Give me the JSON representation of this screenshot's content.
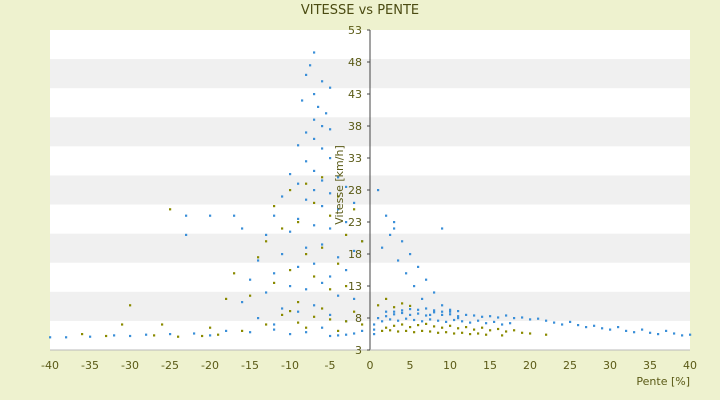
{
  "chart_data": {
    "type": "scatter",
    "title": "VITESSE vs PENTE",
    "xlabel": "Pente [%]",
    "ylabel": "Vitesse [km/h]",
    "xlim": [
      -40,
      40
    ],
    "ylim": [
      3,
      53
    ],
    "x_ticks": [
      "-40",
      "-35",
      "-30",
      "-25",
      "-20",
      "-15",
      "-10",
      "-5",
      "0",
      "5",
      "10",
      "15",
      "20",
      "25",
      "30",
      "35",
      "40"
    ],
    "y_ticks": [
      "53",
      "48",
      "43",
      "38",
      "33",
      "28",
      "23",
      "18",
      "13",
      "8",
      "3"
    ],
    "grid": "horizontal bands",
    "legend": "none",
    "colors": {
      "series_a": "#3a8fd8",
      "series_b": "#8a8a00",
      "background": "#eef2cf",
      "plot": "#ffffff",
      "band": "#f0f0f0"
    },
    "series": [
      {
        "color": "#3a8fd8",
        "points": [
          [
            -7,
            49.5
          ],
          [
            -7.5,
            47.5
          ],
          [
            -8,
            46
          ],
          [
            -6,
            45
          ],
          [
            -5,
            44
          ],
          [
            -7,
            43
          ],
          [
            -6.5,
            41
          ],
          [
            -8.5,
            42
          ],
          [
            -5.5,
            40
          ],
          [
            -7,
            39
          ],
          [
            -6,
            38
          ],
          [
            -5,
            37.5
          ],
          [
            -8,
            37
          ],
          [
            -7,
            36
          ],
          [
            -9,
            35
          ],
          [
            -6,
            34.5
          ],
          [
            -5,
            33
          ],
          [
            -8,
            32.5
          ],
          [
            -7,
            31
          ],
          [
            -10,
            30.5
          ],
          [
            -4,
            30
          ],
          [
            -6,
            29.5
          ],
          [
            -9,
            29
          ],
          [
            -3,
            28.5
          ],
          [
            -7,
            28
          ],
          [
            -5,
            27.5
          ],
          [
            -11,
            27
          ],
          [
            -8,
            26.5
          ],
          [
            -2,
            26
          ],
          [
            -6,
            25.5
          ],
          [
            -4,
            25
          ],
          [
            -12,
            24
          ],
          [
            -9,
            23.5
          ],
          [
            -3,
            23
          ],
          [
            -7,
            22.5
          ],
          [
            -5,
            22
          ],
          [
            -10,
            21.5
          ],
          [
            -13,
            21
          ],
          [
            -1,
            20
          ],
          [
            -6,
            19.5
          ],
          [
            -8,
            19
          ],
          [
            -2,
            18.5
          ],
          [
            -11,
            18
          ],
          [
            -4,
            17.5
          ],
          [
            -14,
            17
          ],
          [
            -7,
            16.5
          ],
          [
            -9,
            16
          ],
          [
            -3,
            15.5
          ],
          [
            -12,
            15
          ],
          [
            -5,
            14.5
          ],
          [
            -15,
            14
          ],
          [
            -6,
            13.5
          ],
          [
            -10,
            13
          ],
          [
            -8,
            12.5
          ],
          [
            -13,
            12
          ],
          [
            -4,
            11.5
          ],
          [
            -2,
            11
          ],
          [
            -16,
            10.5
          ],
          [
            -7,
            10
          ],
          [
            -11,
            9.5
          ],
          [
            -9,
            9
          ],
          [
            -5,
            8.5
          ],
          [
            -14,
            8
          ],
          [
            -3,
            7.5
          ],
          [
            -12,
            7
          ],
          [
            -6,
            6.5
          ],
          [
            -18,
            6
          ],
          [
            -8,
            5.8
          ],
          [
            -10,
            5.5
          ],
          [
            -20,
            5.3
          ],
          [
            -23,
            24
          ],
          [
            -23,
            21
          ],
          [
            -20,
            24
          ],
          [
            -17,
            24
          ],
          [
            -16,
            22
          ],
          [
            -25,
            5.5
          ],
          [
            -30,
            5.2
          ],
          [
            -35,
            5.1
          ],
          [
            -38,
            5
          ],
          [
            -40,
            5
          ],
          [
            1,
            28
          ],
          [
            2,
            24
          ],
          [
            3,
            23
          ],
          [
            2.5,
            21
          ],
          [
            1.5,
            19
          ],
          [
            4,
            20
          ],
          [
            5,
            18
          ],
          [
            3.5,
            17
          ],
          [
            6,
            16
          ],
          [
            4.5,
            15
          ],
          [
            7,
            14
          ],
          [
            5.5,
            13
          ],
          [
            8,
            12
          ],
          [
            6.5,
            11
          ],
          [
            9,
            10
          ],
          [
            10,
            9
          ],
          [
            7.5,
            8.5
          ],
          [
            11,
            8
          ],
          [
            3,
            22
          ],
          [
            9,
            22
          ],
          [
            2,
            9
          ],
          [
            3,
            9
          ],
          [
            4,
            9.2
          ],
          [
            5,
            9.4
          ],
          [
            6,
            9.3
          ],
          [
            7,
            9.5
          ],
          [
            8,
            9.2
          ],
          [
            9,
            9
          ],
          [
            10,
            9.3
          ],
          [
            11,
            9.1
          ],
          [
            1,
            8
          ],
          [
            2,
            8.3
          ],
          [
            3,
            8.6
          ],
          [
            4,
            8.8
          ],
          [
            5,
            8.5
          ],
          [
            6,
            8.7
          ],
          [
            7,
            8.4
          ],
          [
            8,
            8.9
          ],
          [
            9,
            8.5
          ],
          [
            10,
            8.6
          ],
          [
            11,
            8.3
          ],
          [
            12,
            8.5
          ],
          [
            13,
            8.4
          ],
          [
            14,
            8.2
          ],
          [
            15,
            8.3
          ],
          [
            16,
            8.1
          ],
          [
            17,
            8.4
          ],
          [
            18,
            8
          ],
          [
            19,
            8.1
          ],
          [
            20,
            7.8
          ],
          [
            21,
            7.9
          ],
          [
            22,
            7.6
          ],
          [
            23,
            7.3
          ],
          [
            24,
            7
          ],
          [
            25,
            7.4
          ],
          [
            26,
            6.9
          ],
          [
            27,
            6.6
          ],
          [
            28,
            6.8
          ],
          [
            29,
            6.4
          ],
          [
            30,
            6.2
          ],
          [
            31,
            6.6
          ],
          [
            32,
            6
          ],
          [
            33,
            5.8
          ],
          [
            34,
            6.2
          ],
          [
            35,
            5.7
          ],
          [
            36,
            5.5
          ],
          [
            37,
            6
          ],
          [
            38,
            5.6
          ],
          [
            39,
            5.3
          ],
          [
            40,
            5.4
          ],
          [
            1.5,
            7.5
          ],
          [
            2.5,
            7.8
          ],
          [
            3.5,
            7.6
          ],
          [
            4.5,
            7.9
          ],
          [
            5.5,
            7.7
          ],
          [
            6.5,
            7.5
          ],
          [
            7.5,
            7.8
          ],
          [
            8.5,
            7.6
          ],
          [
            9.5,
            7.4
          ],
          [
            10.5,
            7.7
          ],
          [
            11.5,
            7.5
          ],
          [
            12.5,
            7.3
          ],
          [
            13.5,
            7.6
          ],
          [
            14.5,
            7.2
          ],
          [
            15.5,
            7.4
          ],
          [
            16.5,
            7
          ],
          [
            17.5,
            7.2
          ],
          [
            0.5,
            7
          ],
          [
            0.5,
            6.2
          ],
          [
            0.5,
            5.5
          ],
          [
            -1,
            6
          ],
          [
            -2,
            5.6
          ],
          [
            -3,
            5.4
          ],
          [
            -4,
            5.3
          ],
          [
            -5,
            5.2
          ],
          [
            -28,
            5.4
          ],
          [
            -32,
            5.3
          ],
          [
            -22,
            5.6
          ],
          [
            -15,
            5.8
          ],
          [
            -12,
            6.2
          ]
        ]
      },
      {
        "color": "#8a8a00",
        "points": [
          [
            -6,
            30
          ],
          [
            -8,
            29
          ],
          [
            -10,
            28
          ],
          [
            -4,
            27
          ],
          [
            -7,
            26
          ],
          [
            -12,
            25.5
          ],
          [
            -5,
            24
          ],
          [
            -9,
            23
          ],
          [
            -11,
            22
          ],
          [
            -3,
            21
          ],
          [
            -13,
            20
          ],
          [
            -6,
            19
          ],
          [
            -8,
            18
          ],
          [
            -14,
            17.5
          ],
          [
            -4,
            16.5
          ],
          [
            -10,
            15.5
          ],
          [
            -7,
            14.5
          ],
          [
            -12,
            13.5
          ],
          [
            -5,
            12.5
          ],
          [
            -15,
            11.5
          ],
          [
            -9,
            10.5
          ],
          [
            -6,
            9.5
          ],
          [
            -11,
            8.5
          ],
          [
            -3,
            7.5
          ],
          [
            -13,
            7
          ],
          [
            -8,
            6.5
          ],
          [
            -16,
            6
          ],
          [
            -18,
            11
          ],
          [
            -17,
            15
          ],
          [
            -20,
            6.5
          ],
          [
            -25,
            25
          ],
          [
            -26,
            7
          ],
          [
            -30,
            10
          ],
          [
            -31,
            7
          ],
          [
            -36,
            5.5
          ],
          [
            -33,
            5.2
          ],
          [
            -27,
            5.3
          ],
          [
            -24,
            5.1
          ],
          [
            -21,
            5.2
          ],
          [
            -19,
            5.4
          ],
          [
            -2,
            25
          ],
          [
            -1,
            20
          ],
          [
            -3,
            13
          ],
          [
            -2,
            9
          ],
          [
            -1,
            7
          ],
          [
            -4,
            6
          ],
          [
            -5,
            7.8
          ],
          [
            -7,
            8.2
          ],
          [
            -9,
            7.3
          ],
          [
            -10,
            9.1
          ],
          [
            2,
            6.5
          ],
          [
            3,
            6.8
          ],
          [
            4,
            7
          ],
          [
            5,
            6.6
          ],
          [
            6,
            6.9
          ],
          [
            7,
            7.1
          ],
          [
            8,
            6.7
          ],
          [
            9,
            6.5
          ],
          [
            10,
            6.8
          ],
          [
            11,
            6.4
          ],
          [
            12,
            6.6
          ],
          [
            13,
            6.2
          ],
          [
            14,
            6.5
          ],
          [
            15,
            6.1
          ],
          [
            16,
            6.3
          ],
          [
            17,
            5.9
          ],
          [
            18,
            6.1
          ],
          [
            19,
            5.7
          ],
          [
            20,
            5.6
          ],
          [
            22,
            5.4
          ],
          [
            1,
            10
          ],
          [
            2,
            11
          ],
          [
            3,
            9.7
          ],
          [
            4,
            10.3
          ],
          [
            5,
            9.9
          ],
          [
            1.5,
            6
          ],
          [
            2.5,
            6.1
          ],
          [
            3.5,
            5.9
          ],
          [
            4.5,
            6
          ],
          [
            5.5,
            5.8
          ],
          [
            6.5,
            6
          ],
          [
            7.5,
            5.9
          ],
          [
            8.5,
            5.7
          ],
          [
            9.5,
            5.8
          ],
          [
            10.5,
            5.6
          ],
          [
            11.5,
            5.7
          ],
          [
            12.5,
            5.5
          ],
          [
            13.5,
            5.6
          ],
          [
            14.5,
            5.4
          ],
          [
            16.5,
            5.3
          ]
        ]
      }
    ]
  }
}
